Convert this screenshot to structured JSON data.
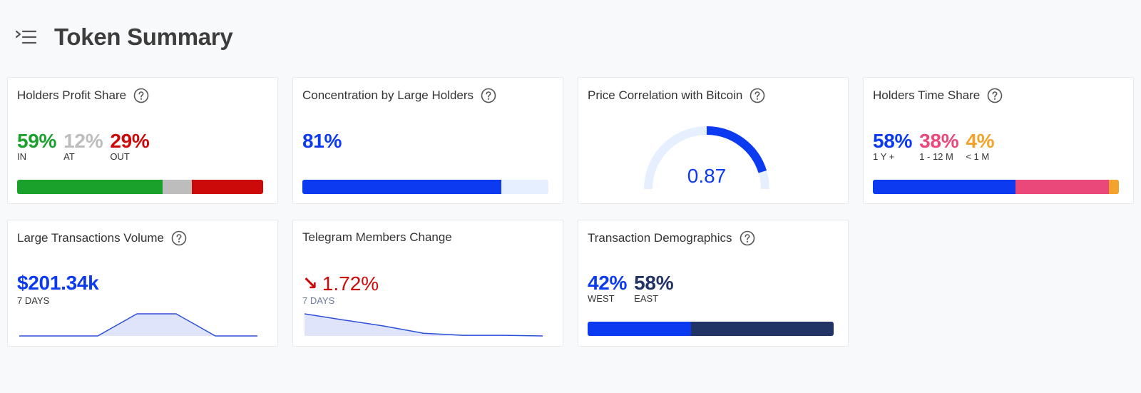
{
  "header": {
    "title": "Token Summary",
    "menu_icon": "menu-collapse-icon"
  },
  "colors": {
    "green": "#1aa12b",
    "gray": "#bdbdbd",
    "red": "#cc0a0a",
    "blue": "#0b3af0",
    "blue_light": "#e6efff",
    "pink": "#e9497a",
    "orange": "#f3a32b",
    "navy": "#223366"
  },
  "cards": {
    "holders_profit": {
      "title": "Holders Profit Share",
      "in_value": "59%",
      "in_label": "IN",
      "in_share": 0.59,
      "at_value": "12%",
      "at_label": "AT",
      "at_share": 0.12,
      "out_value": "29%",
      "out_label": "OUT",
      "out_share": 0.29
    },
    "concentration": {
      "title": "Concentration by Large Holders",
      "value": "81%",
      "share": 0.81
    },
    "price_correlation": {
      "title": "Price Correlation with Bitcoin",
      "value": "0.87",
      "level": 0.87
    },
    "holders_time": {
      "title": "Holders Time Share",
      "long_value": "58%",
      "long_label": "1 Y +",
      "long_share": 0.58,
      "mid_value": "38%",
      "mid_label": "1 - 12 M",
      "mid_share": 0.38,
      "short_value": "4%",
      "short_label": "< 1 M",
      "short_share": 0.04
    },
    "large_tx": {
      "title": "Large Transactions Volume",
      "value": "$201.34k",
      "period": "7 DAYS",
      "trend": [
        0,
        0,
        0,
        1,
        1,
        0,
        0
      ]
    },
    "telegram": {
      "title": "Telegram Members Change",
      "arrow": "↘",
      "value": "1.72%",
      "period": "7 DAYS",
      "trend": [
        1.0,
        0.72,
        0.45,
        0.12,
        0.03,
        0.03,
        0.0
      ]
    },
    "demographics": {
      "title": "Transaction Demographics",
      "west_value": "42%",
      "west_label": "WEST",
      "west_share": 0.42,
      "east_value": "58%",
      "east_label": "EAST",
      "east_share": 0.58
    }
  }
}
